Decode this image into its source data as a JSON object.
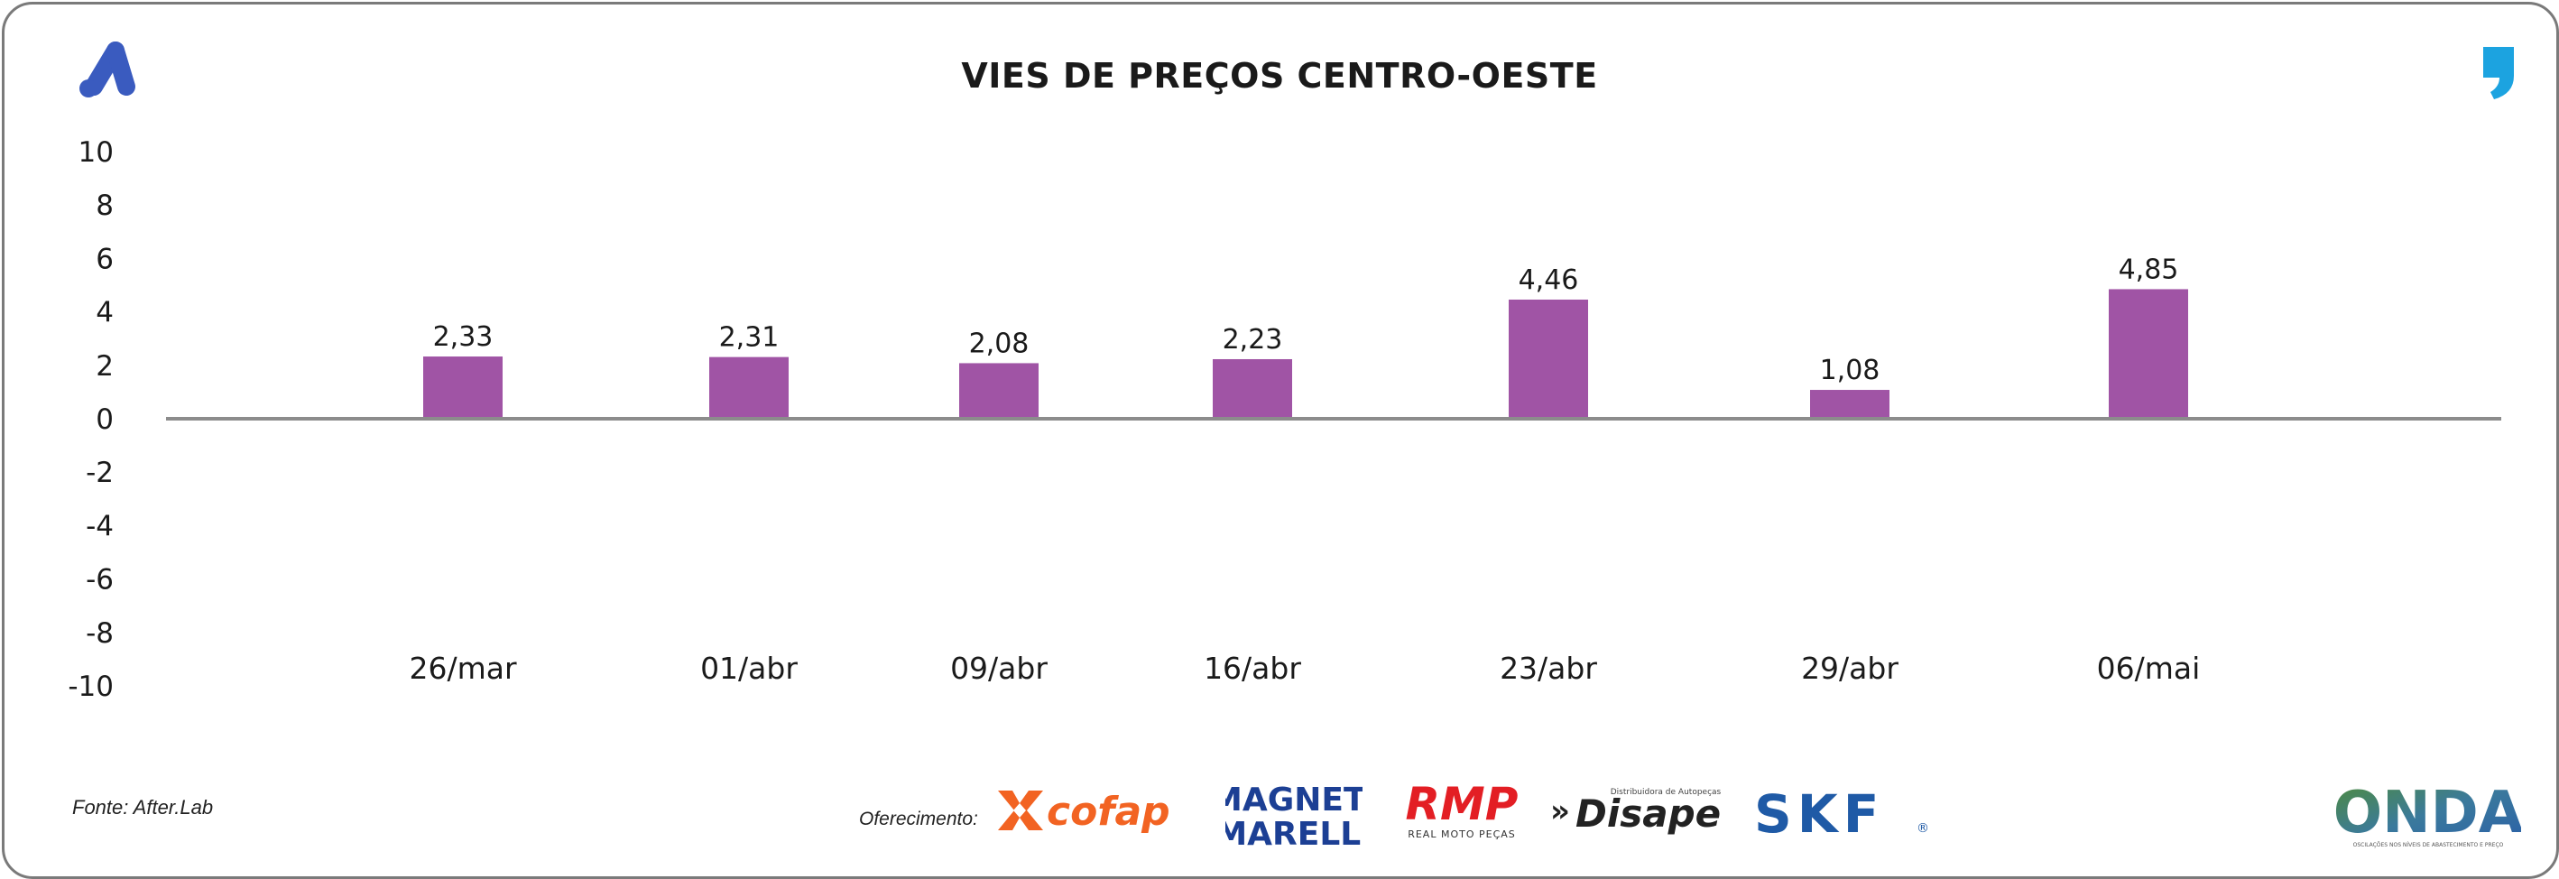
{
  "header": {
    "title": "VIES DE PREÇOS CENTRO-OESTE"
  },
  "footer": {
    "source": "Fonte: After.Lab",
    "sponsored_by": "Oferecimento:",
    "sponsors": [
      {
        "name": "cofap",
        "color": "#f26322"
      },
      {
        "name": "MAGNETI MARELLI",
        "line1": "MAGNETI",
        "line2": "MARELLI",
        "color": "#1c3f94"
      },
      {
        "name": "RMP",
        "subtitle": "REAL MOTO PEÇAS",
        "color": "#e31e24"
      },
      {
        "name": "Disape",
        "tagline": "Distribuidora de Autopeças",
        "color": "#222222"
      },
      {
        "name": "SKF",
        "color": "#1f5aa6"
      }
    ],
    "onda": {
      "name": "ONDA",
      "tagline": "OSCILAÇÕES NOS NÍVEIS DE ABASTECIMENTO E PREÇO"
    }
  },
  "colors": {
    "bar": "#a054a5",
    "zero_line": "#8c8c8c",
    "brand_blue": "#3a5bbf",
    "brand_cyan": "#1ca3e0"
  },
  "chart_data": {
    "type": "bar",
    "title": "VIES DE PREÇOS CENTRO-OESTE",
    "categories": [
      "26/mar",
      "01/abr",
      "09/abr",
      "16/abr",
      "23/abr",
      "29/abr",
      "06/mai"
    ],
    "values": [
      2.33,
      2.31,
      2.08,
      2.23,
      4.46,
      1.08,
      4.85
    ],
    "value_labels": [
      "2,33",
      "2,31",
      "2,08",
      "2,23",
      "4,46",
      "1,08",
      "4,85"
    ],
    "xlabel": "",
    "ylabel": "",
    "ylim": [
      -10,
      10
    ],
    "yticks": [
      10,
      8,
      6,
      4,
      2,
      0,
      -2,
      -4,
      -6,
      -8,
      -10
    ],
    "grid": false,
    "legend": "none"
  }
}
